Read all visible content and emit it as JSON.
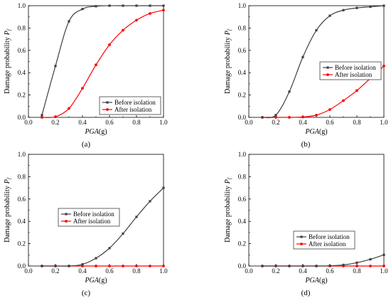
{
  "chart_data": [
    {
      "id": "a",
      "type": "line",
      "panel_label": "(a)",
      "xlabel": "PGA",
      "xlabel_unit": "(g)",
      "ylabel": "Damage probability",
      "ylabel_symbol": "P",
      "ylabel_sub": "f",
      "xlim": [
        0.0,
        1.0
      ],
      "ylim": [
        0.0,
        1.0
      ],
      "xticks": [
        "0.0",
        "0.2",
        "0.4",
        "0.6",
        "0.8",
        "1.0"
      ],
      "yticks": [
        "0.0",
        "0.2",
        "0.4",
        "0.6",
        "0.8",
        "1.0"
      ],
      "legend_position": "bottom-right",
      "x": [
        0.1,
        0.2,
        0.3,
        0.4,
        0.5,
        0.6,
        0.7,
        0.8,
        0.9,
        1.0
      ],
      "series": [
        {
          "name": "Before isolation",
          "color": "#404040",
          "marker": "square",
          "values": [
            0.02,
            0.46,
            0.86,
            0.97,
            0.995,
            1.0,
            1.0,
            1.0,
            1.0,
            1.0
          ]
        },
        {
          "name": "After isolation",
          "color": "#ff0000",
          "marker": "circle",
          "values": [
            0.0,
            0.005,
            0.08,
            0.26,
            0.47,
            0.65,
            0.78,
            0.87,
            0.93,
            0.96
          ]
        }
      ]
    },
    {
      "id": "b",
      "type": "line",
      "panel_label": "(b)",
      "xlabel": "PGA",
      "xlabel_unit": "(g)",
      "ylabel": "Damage probability",
      "ylabel_symbol": "P",
      "ylabel_sub": "f",
      "xlim": [
        0.0,
        1.0
      ],
      "ylim": [
        0.0,
        1.0
      ],
      "xticks": [
        "0.0",
        "0.2",
        "0.4",
        "0.6",
        "0.8",
        "1.0"
      ],
      "yticks": [
        "0.0",
        "0.2",
        "0.4",
        "0.6",
        "0.8",
        "1.0"
      ],
      "legend_position": "right-middle",
      "x": [
        0.1,
        0.2,
        0.3,
        0.4,
        0.5,
        0.6,
        0.7,
        0.8,
        0.9,
        1.0
      ],
      "series": [
        {
          "name": "Before isolation",
          "color": "#404040",
          "marker": "square",
          "values": [
            0.0,
            0.02,
            0.23,
            0.54,
            0.78,
            0.91,
            0.96,
            0.98,
            0.99,
            1.0
          ]
        },
        {
          "name": "After isolation",
          "color": "#ff0000",
          "marker": "circle",
          "values": [
            0.0,
            0.0,
            0.0,
            0.003,
            0.02,
            0.07,
            0.15,
            0.24,
            0.35,
            0.46
          ]
        }
      ]
    },
    {
      "id": "c",
      "type": "line",
      "panel_label": "(c)",
      "xlabel": "PGA",
      "xlabel_unit": "(g)",
      "ylabel": "Damage probability",
      "ylabel_symbol": "P",
      "ylabel_sub": "f",
      "xlim": [
        0.0,
        1.0
      ],
      "ylim": [
        0.0,
        1.0
      ],
      "xticks": [
        "0.0",
        "0.2",
        "0.4",
        "0.6",
        "0.8",
        "1.0"
      ],
      "yticks": [
        "0.0",
        "0.2",
        "0.4",
        "0.6",
        "0.8",
        "1.0"
      ],
      "legend_position": "center",
      "x": [
        0.1,
        0.2,
        0.3,
        0.4,
        0.5,
        0.6,
        0.7,
        0.8,
        0.9,
        1.0
      ],
      "series": [
        {
          "name": "Before isolation",
          "color": "#404040",
          "marker": "square",
          "values": [
            0.0,
            0.0,
            0.0,
            0.015,
            0.07,
            0.16,
            0.29,
            0.44,
            0.58,
            0.7
          ]
        },
        {
          "name": "After isolation",
          "color": "#ff0000",
          "marker": "circle",
          "values": [
            0.0,
            0.0,
            0.0,
            0.0,
            0.0,
            0.0,
            0.0,
            0.0,
            0.0,
            0.0
          ]
        }
      ]
    },
    {
      "id": "d",
      "type": "line",
      "panel_label": "(d)",
      "xlabel": "PGA",
      "xlabel_unit": "(g)",
      "ylabel": "Damage probability",
      "ylabel_symbol": "P",
      "ylabel_sub": "f",
      "xlim": [
        0.0,
        1.0
      ],
      "ylim": [
        0.0,
        1.0
      ],
      "xticks": [
        "0.0",
        "0.2",
        "0.4",
        "0.6",
        "0.8",
        "1.0"
      ],
      "yticks": [
        "0.0",
        "0.2",
        "0.4",
        "0.6",
        "0.8",
        "1.0"
      ],
      "legend_position": "lower-right",
      "x": [
        0.1,
        0.2,
        0.3,
        0.4,
        0.5,
        0.6,
        0.7,
        0.8,
        0.9,
        1.0
      ],
      "series": [
        {
          "name": "Before isolation",
          "color": "#404040",
          "marker": "square",
          "values": [
            0.0,
            0.0,
            0.0,
            0.0,
            0.0,
            0.002,
            0.01,
            0.03,
            0.06,
            0.1
          ]
        },
        {
          "name": "After isolation",
          "color": "#ff0000",
          "marker": "circle",
          "values": [
            0.0,
            0.0,
            0.0,
            0.0,
            0.0,
            0.0,
            0.0,
            0.0,
            0.0,
            0.0
          ]
        }
      ]
    }
  ]
}
